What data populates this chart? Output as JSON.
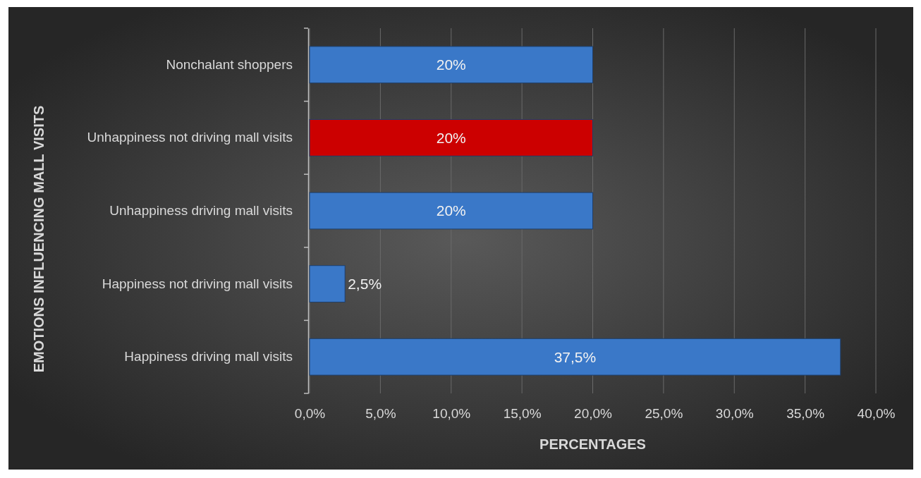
{
  "chart_data": {
    "type": "bar",
    "orientation": "horizontal",
    "xlabel": "PERCENTAGES",
    "ylabel": "EMOTIONS INFLUENCING MALL VISITS",
    "categories": [
      "Nonchalant shoppers",
      "Unhappiness not driving mall visits",
      "Unhappiness driving mall visits",
      "Happiness not driving mall visits",
      "Happiness driving mall visits"
    ],
    "values": [
      20,
      20,
      20,
      2.5,
      37.5
    ],
    "colors": [
      "#3a78c8",
      "#cc0000",
      "#3a78c8",
      "#3a78c8",
      "#3a78c8"
    ],
    "value_labels": [
      "20%",
      "20%",
      "20%",
      "2,5%",
      "37,5%"
    ],
    "xlim": [
      0,
      40
    ],
    "xticks": [
      {
        "value": 0,
        "label": "0,0%"
      },
      {
        "value": 5,
        "label": "5,0%"
      },
      {
        "value": 10,
        "label": "10,0%"
      },
      {
        "value": 15,
        "label": "15,0%"
      },
      {
        "value": 20,
        "label": "20,0%"
      },
      {
        "value": 25,
        "label": "25,0%"
      },
      {
        "value": 30,
        "label": "30,0%"
      },
      {
        "value": 35,
        "label": "35,0%"
      },
      {
        "value": 40,
        "label": "40,0%"
      }
    ],
    "grid": "x"
  }
}
